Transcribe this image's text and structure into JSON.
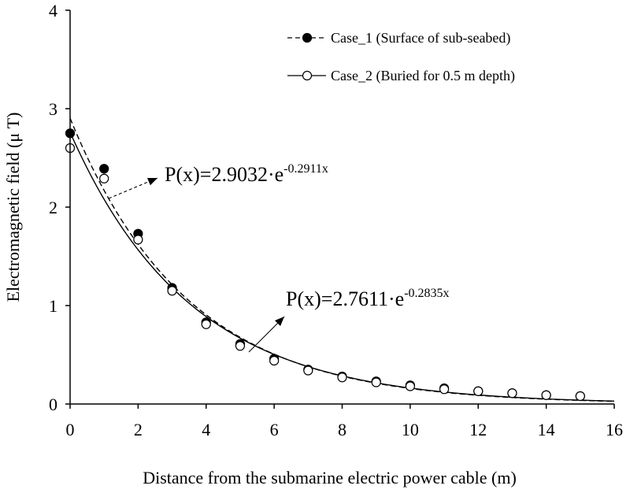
{
  "chart_data": {
    "type": "scatter",
    "xlabel": "Distance from the submarine electric power cable (m)",
    "ylabel": "Electromagnetic field (μ T)",
    "xlim": [
      0,
      16
    ],
    "ylim": [
      0,
      4
    ],
    "xticks": [
      "0",
      "2",
      "4",
      "6",
      "8",
      "10",
      "12",
      "14",
      "16"
    ],
    "yticks": [
      "0",
      "1",
      "2",
      "3",
      "4"
    ],
    "grid": false,
    "legend_position": "top-right",
    "series": [
      {
        "name": "Case_1 (Surface of sub-seabed)",
        "marker": "filled-circle",
        "line_style": "dashed",
        "fit": {
          "a": 2.9032,
          "b": 0.2911
        },
        "x": [
          0,
          1,
          2,
          3,
          4,
          5,
          6,
          7,
          8,
          9,
          10,
          11,
          12,
          13,
          14,
          15
        ],
        "y": [
          2.75,
          2.39,
          1.73,
          1.18,
          0.83,
          0.61,
          0.46,
          0.35,
          0.28,
          0.23,
          0.19,
          0.16,
          0.13,
          0.11,
          0.09,
          0.08
        ]
      },
      {
        "name": "Case_2 (Buried for 0.5 m depth)",
        "marker": "open-circle",
        "line_style": "solid",
        "fit": {
          "a": 2.7611,
          "b": 0.2835
        },
        "x": [
          0,
          1,
          2,
          3,
          4,
          5,
          6,
          7,
          8,
          9,
          10,
          11,
          12,
          13,
          14,
          15
        ],
        "y": [
          2.6,
          2.29,
          1.67,
          1.15,
          0.81,
          0.59,
          0.44,
          0.34,
          0.27,
          0.22,
          0.18,
          0.15,
          0.13,
          0.11,
          0.09,
          0.08
        ]
      }
    ],
    "annotations": [
      {
        "base": "P(x)=2.9032·e",
        "exponent": "-0.2911x",
        "series": 0
      },
      {
        "base": "P(x)=2.7611·e",
        "exponent": "-0.2835x",
        "series": 1
      }
    ]
  }
}
